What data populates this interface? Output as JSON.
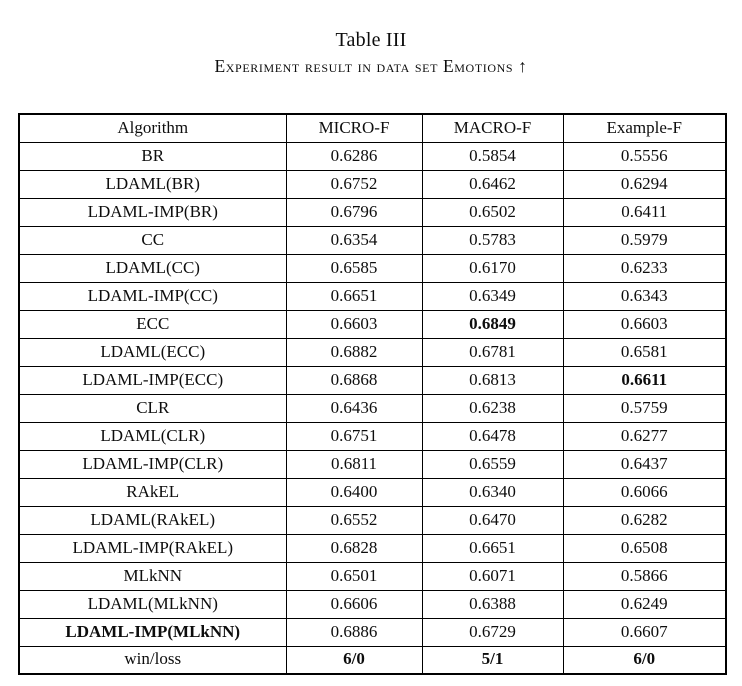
{
  "caption": {
    "title": "Table III",
    "subtitle": "Experiment result in data set Emotions ↑"
  },
  "table": {
    "columns": [
      "Algorithm",
      "MICRO-F",
      "MACRO-F",
      "Example-F"
    ],
    "rows": [
      {
        "cells": [
          "BR",
          "0.6286",
          "0.5854",
          "0.5556"
        ],
        "bold": [
          false,
          false,
          false,
          false
        ]
      },
      {
        "cells": [
          "LDAML(BR)",
          "0.6752",
          "0.6462",
          "0.6294"
        ],
        "bold": [
          false,
          false,
          false,
          false
        ]
      },
      {
        "cells": [
          "LDAML-IMP(BR)",
          "0.6796",
          "0.6502",
          "0.6411"
        ],
        "bold": [
          false,
          false,
          false,
          false
        ]
      },
      {
        "cells": [
          "CC",
          "0.6354",
          "0.5783",
          "0.5979"
        ],
        "bold": [
          false,
          false,
          false,
          false
        ]
      },
      {
        "cells": [
          "LDAML(CC)",
          "0.6585",
          "0.6170",
          "0.6233"
        ],
        "bold": [
          false,
          false,
          false,
          false
        ]
      },
      {
        "cells": [
          "LDAML-IMP(CC)",
          "0.6651",
          "0.6349",
          "0.6343"
        ],
        "bold": [
          false,
          false,
          false,
          false
        ]
      },
      {
        "cells": [
          "ECC",
          "0.6603",
          "0.6849",
          "0.6603"
        ],
        "bold": [
          false,
          false,
          true,
          false
        ]
      },
      {
        "cells": [
          "LDAML(ECC)",
          "0.6882",
          "0.6781",
          "0.6581"
        ],
        "bold": [
          false,
          false,
          false,
          false
        ]
      },
      {
        "cells": [
          "LDAML-IMP(ECC)",
          "0.6868",
          "0.6813",
          "0.6611"
        ],
        "bold": [
          false,
          false,
          false,
          true
        ]
      },
      {
        "cells": [
          "CLR",
          "0.6436",
          "0.6238",
          "0.5759"
        ],
        "bold": [
          false,
          false,
          false,
          false
        ]
      },
      {
        "cells": [
          "LDAML(CLR)",
          "0.6751",
          "0.6478",
          "0.6277"
        ],
        "bold": [
          false,
          false,
          false,
          false
        ]
      },
      {
        "cells": [
          "LDAML-IMP(CLR)",
          "0.6811",
          "0.6559",
          "0.6437"
        ],
        "bold": [
          false,
          false,
          false,
          false
        ]
      },
      {
        "cells": [
          "RAkEL",
          "0.6400",
          "0.6340",
          "0.6066"
        ],
        "bold": [
          false,
          false,
          false,
          false
        ]
      },
      {
        "cells": [
          "LDAML(RAkEL)",
          "0.6552",
          "0.6470",
          "0.6282"
        ],
        "bold": [
          false,
          false,
          false,
          false
        ]
      },
      {
        "cells": [
          "LDAML-IMP(RAkEL)",
          "0.6828",
          "0.6651",
          "0.6508"
        ],
        "bold": [
          false,
          false,
          false,
          false
        ]
      },
      {
        "cells": [
          "MLkNN",
          "0.6501",
          "0.6071",
          "0.5866"
        ],
        "bold": [
          false,
          false,
          false,
          false
        ]
      },
      {
        "cells": [
          "LDAML(MLkNN)",
          "0.6606",
          "0.6388",
          "0.6249"
        ],
        "bold": [
          false,
          false,
          false,
          false
        ]
      },
      {
        "cells": [
          "LDAML-IMP(MLkNN)",
          "0.6886",
          "0.6729",
          "0.6607"
        ],
        "bold": [
          true,
          false,
          false,
          false
        ]
      },
      {
        "cells": [
          "win/loss",
          "6/0",
          "5/1",
          "6/0"
        ],
        "bold": [
          false,
          true,
          true,
          true
        ]
      }
    ]
  },
  "colors": {
    "text": "#0d0d0d",
    "border": "#000000",
    "background": "#ffffff"
  }
}
